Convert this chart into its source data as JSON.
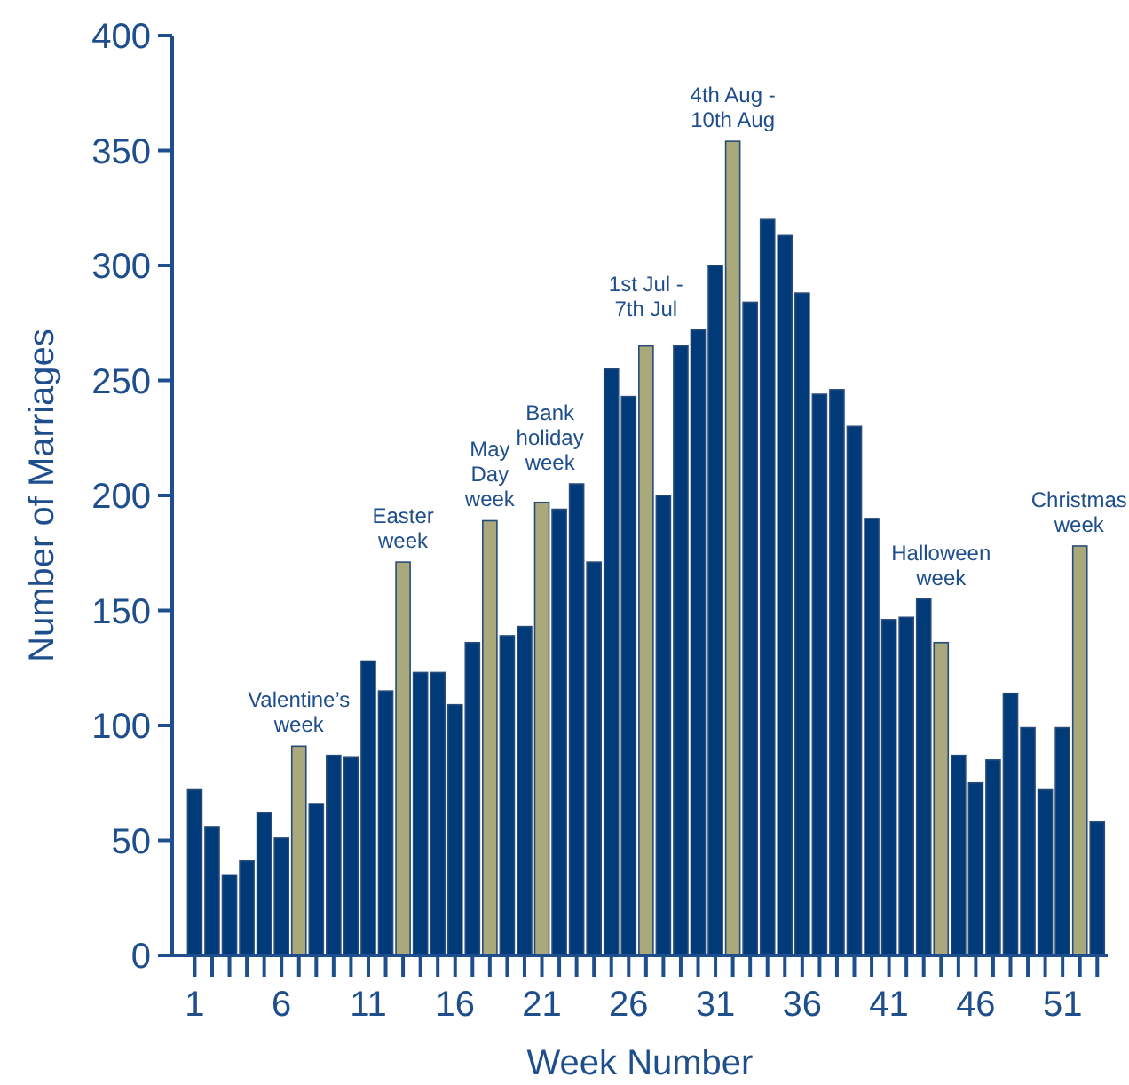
{
  "chart_data": {
    "type": "bar",
    "xlabel": "Week Number",
    "ylabel": "Number of Marriages",
    "x": [
      1,
      2,
      3,
      4,
      5,
      6,
      7,
      8,
      9,
      10,
      11,
      12,
      13,
      14,
      15,
      16,
      17,
      18,
      19,
      20,
      21,
      22,
      23,
      24,
      25,
      26,
      27,
      28,
      29,
      30,
      31,
      32,
      33,
      34,
      35,
      36,
      37,
      38,
      39,
      40,
      41,
      42,
      43,
      44,
      45,
      46,
      47,
      48,
      49,
      50,
      51,
      52,
      53
    ],
    "values": [
      72,
      56,
      35,
      41,
      62,
      51,
      91,
      66,
      87,
      86,
      128,
      115,
      171,
      123,
      123,
      109,
      136,
      189,
      139,
      143,
      197,
      194,
      205,
      171,
      255,
      243,
      265,
      200,
      265,
      272,
      300,
      354,
      284,
      320,
      313,
      288,
      244,
      246,
      230,
      190,
      146,
      147,
      155,
      136,
      87,
      75,
      85,
      114,
      99,
      72,
      99,
      178,
      58
    ],
    "colors": [
      "#003a78",
      "#003a78",
      "#003a78",
      "#003a78",
      "#003a78",
      "#003a78",
      "#a9a97c",
      "#003a78",
      "#003a78",
      "#003a78",
      "#003a78",
      "#003a78",
      "#a9a97c",
      "#003a78",
      "#003a78",
      "#003a78",
      "#003a78",
      "#a9a97c",
      "#003a78",
      "#003a78",
      "#a9a97c",
      "#003a78",
      "#003a78",
      "#003a78",
      "#003a78",
      "#003a78",
      "#a9a97c",
      "#003a78",
      "#003a78",
      "#003a78",
      "#003a78",
      "#a9a97c",
      "#003a78",
      "#003a78",
      "#003a78",
      "#003a78",
      "#003a78",
      "#003a78",
      "#003a78",
      "#003a78",
      "#003a78",
      "#003a78",
      "#003a78",
      "#a9a97c",
      "#003a78",
      "#003a78",
      "#003a78",
      "#003a78",
      "#003a78",
      "#003a78",
      "#003a78",
      "#a9a97c",
      "#003a78"
    ],
    "xlim": [
      -0.3,
      53.6
    ],
    "xticks": [
      1,
      {
        "value": 2,
        "label": null
      },
      {
        "value": 3,
        "label": null
      },
      {
        "value": 4,
        "label": null
      },
      {
        "value": 5,
        "label": null
      },
      6,
      {
        "value": 7,
        "label": null
      },
      {
        "value": 8,
        "label": null
      },
      {
        "value": 9,
        "label": null
      },
      {
        "value": 10,
        "label": null
      },
      11,
      {
        "value": 12,
        "label": null
      },
      {
        "value": 13,
        "label": null
      },
      {
        "value": 14,
        "label": null
      },
      {
        "value": 15,
        "label": null
      },
      16,
      {
        "value": 17,
        "label": null
      },
      {
        "value": 18,
        "label": null
      },
      {
        "value": 19,
        "label": null
      },
      {
        "value": 20,
        "label": null
      },
      21,
      {
        "value": 22,
        "label": null
      },
      {
        "value": 23,
        "label": null
      },
      {
        "value": 24,
        "label": null
      },
      {
        "value": 25,
        "label": null
      },
      26,
      {
        "value": 27,
        "label": null
      },
      {
        "value": 28,
        "label": null
      },
      {
        "value": 29,
        "label": null
      },
      {
        "value": 30,
        "label": null
      },
      31,
      {
        "value": 32,
        "label": null
      },
      {
        "value": 33,
        "label": null
      },
      {
        "value": 34,
        "label": null
      },
      {
        "value": 35,
        "label": null
      },
      36,
      {
        "value": 37,
        "label": null
      },
      {
        "value": 38,
        "label": null
      },
      {
        "value": 39,
        "label": null
      },
      {
        "value": 40,
        "label": null
      },
      41,
      {
        "value": 42,
        "label": null
      },
      {
        "value": 43,
        "label": null
      },
      {
        "value": 44,
        "label": null
      },
      {
        "value": 45,
        "label": null
      },
      46,
      {
        "value": 47,
        "label": null
      },
      {
        "value": 48,
        "label": null
      },
      {
        "value": 49,
        "label": null
      },
      {
        "value": 50,
        "label": null
      },
      51,
      {
        "value": 52,
        "label": null
      },
      {
        "value": 53,
        "label": null
      }
    ],
    "ylim": [
      0,
      400
    ],
    "yticks": [
      0,
      50,
      100,
      150,
      200,
      250,
      300,
      350,
      400
    ],
    "annotations": [
      {
        "text": "Valentine’s\nweek",
        "x": 7,
        "y": 91
      },
      {
        "text": "Easter\nweek",
        "x": 13,
        "y": 171
      },
      {
        "text": "May\nDay\nweek",
        "x": 18,
        "y": 189
      },
      {
        "text": "Bank\nholiday\nweek",
        "x": 21,
        "y": 197
      },
      {
        "text": "1st Jul -\n7th Jul",
        "x": 27,
        "y": 265
      },
      {
        "text": "4th Aug -\n10th Aug",
        "x": 32,
        "y": 354
      },
      {
        "text": "Halloween\nweek",
        "x": 44,
        "y": 136
      },
      {
        "text": "Christmas\nweek",
        "x": 52,
        "y": 178
      }
    ]
  }
}
